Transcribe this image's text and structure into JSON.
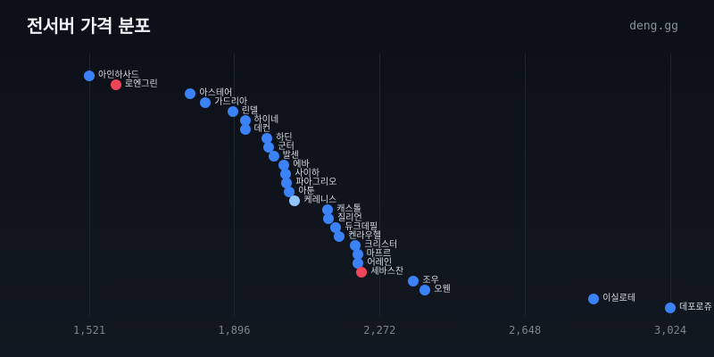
{
  "header": {
    "title": "전서버 가격 분포",
    "brand": "deng.gg"
  },
  "colors": {
    "default": "#3b82f6",
    "highlight_red": "#ef4558",
    "highlight_light": "#93c5fd",
    "gridline": "#1e2530",
    "tick_text": "#7d838d"
  },
  "chart_data": {
    "type": "scatter",
    "title": "전서버 가격 분포",
    "xlabel": "",
    "ylabel": "",
    "xlim": [
      1521,
      3024
    ],
    "x_ticks": [
      1521,
      1896,
      2272,
      2648,
      3024
    ],
    "x_tick_labels": [
      "1,521",
      "1,896",
      "2,272",
      "2,648",
      "3,024"
    ],
    "grid": "vertical",
    "legend": "none",
    "points": [
      {
        "label": "아인하사드",
        "x": 1521,
        "color": "default"
      },
      {
        "label": "로엔그린",
        "x": 1590,
        "color": "highlight_red"
      },
      {
        "label": "아스테어",
        "x": 1783,
        "color": "default"
      },
      {
        "label": "가드리아",
        "x": 1822,
        "color": "default"
      },
      {
        "label": "린델",
        "x": 1892,
        "color": "default"
      },
      {
        "label": "하이네",
        "x": 1924,
        "color": "default"
      },
      {
        "label": "데컨",
        "x": 1924,
        "color": "default"
      },
      {
        "label": "하딘",
        "x": 1981,
        "color": "default"
      },
      {
        "label": "군터",
        "x": 1986,
        "color": "default"
      },
      {
        "label": "발센",
        "x": 1998,
        "color": "default"
      },
      {
        "label": "에바",
        "x": 2025,
        "color": "default"
      },
      {
        "label": "사이하",
        "x": 2030,
        "color": "default"
      },
      {
        "label": "파아그리오",
        "x": 2032,
        "color": "default"
      },
      {
        "label": "아툰",
        "x": 2039,
        "color": "default"
      },
      {
        "label": "케레니스",
        "x": 2053,
        "color": "highlight_light"
      },
      {
        "label": "캐스톨",
        "x": 2138,
        "color": "default"
      },
      {
        "label": "질리언",
        "x": 2140,
        "color": "default"
      },
      {
        "label": "듀크데필",
        "x": 2159,
        "color": "default"
      },
      {
        "label": "켄라우헬",
        "x": 2168,
        "color": "default"
      },
      {
        "label": "크리스터",
        "x": 2210,
        "color": "default"
      },
      {
        "label": "마프르",
        "x": 2215,
        "color": "default"
      },
      {
        "label": "어레인",
        "x": 2217,
        "color": "default"
      },
      {
        "label": "세바스찬",
        "x": 2226,
        "color": "highlight_red"
      },
      {
        "label": "조우",
        "x": 2360,
        "color": "default"
      },
      {
        "label": "오웬",
        "x": 2390,
        "color": "default"
      },
      {
        "label": "이실로테",
        "x": 2826,
        "color": "default"
      },
      {
        "label": "데포로쥬",
        "x": 3024,
        "color": "default"
      }
    ]
  }
}
